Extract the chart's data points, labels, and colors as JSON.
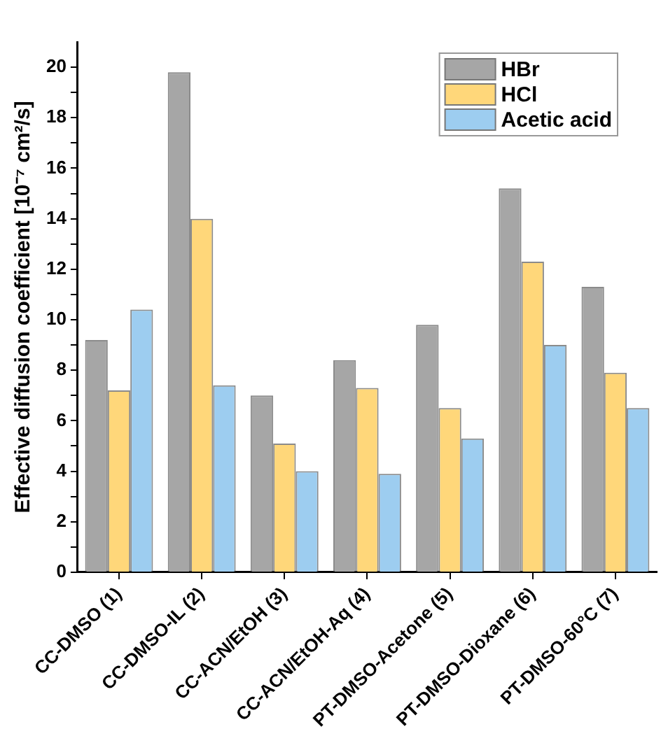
{
  "chart_data": {
    "type": "bar",
    "ylabel": "Effective diffusion coefficient [10⁻⁷ cm²/s]",
    "categories": [
      "CC-DMSO (1)",
      "CC-DMSO-IL (2)",
      "CC-ACN/EtOH (3)",
      "CC-ACN/EtOH-Aq (4)",
      "PT-DMSO-Acetone (5)",
      "PT-DMSO-Dioxane (6)",
      "PT-DMSO-60°C (7)"
    ],
    "series": [
      {
        "name": "HBr",
        "color": "#a6a6a6",
        "values": [
          9.2,
          19.8,
          7.0,
          8.4,
          9.8,
          15.2,
          11.3
        ]
      },
      {
        "name": "HCl",
        "color": "#ffd77a",
        "values": [
          7.2,
          14.0,
          5.1,
          7.3,
          6.5,
          12.3,
          7.9
        ]
      },
      {
        "name": "Acetic acid",
        "color": "#9dcdf0",
        "values": [
          10.4,
          7.4,
          4.0,
          3.9,
          5.3,
          9.0,
          6.5
        ]
      }
    ],
    "ylim": [
      0,
      21
    ],
    "yticks": [
      0,
      {
        "value": 1,
        "label": null
      },
      2,
      {
        "value": 3,
        "label": null
      },
      4,
      {
        "value": 5,
        "label": null
      },
      6,
      {
        "value": 7,
        "label": null
      },
      8,
      {
        "value": 9,
        "label": null
      },
      10,
      {
        "value": 11,
        "label": null
      },
      12,
      {
        "value": 13,
        "label": null
      },
      14,
      {
        "value": 15,
        "label": null
      },
      16,
      {
        "value": 17,
        "label": null
      },
      18,
      {
        "value": 19,
        "label": null
      },
      20
    ],
    "grid": false,
    "legend": "top right"
  }
}
